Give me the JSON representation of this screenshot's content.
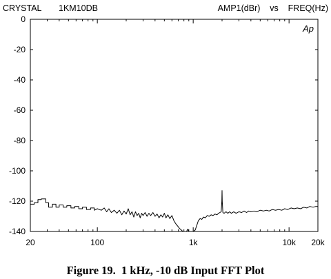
{
  "header": {
    "left_1": "CRYSTAL",
    "left_2": "1KM10DB",
    "right": "AMP1(dBr)    vs    FREQ(Hz)"
  },
  "logo": "Ap",
  "caption": "Figure 19.  1 kHz, -10 dB Input FFT Plot",
  "chart_data": {
    "type": "line",
    "title": "AMP1(dBr) vs FREQ(Hz)",
    "xlabel": "",
    "ylabel": "",
    "xscale": "log",
    "xlim": [
      20,
      20000
    ],
    "ylim": [
      -140,
      0
    ],
    "grid": false,
    "x_ticks": [
      {
        "value": 20,
        "label": "20"
      },
      {
        "value": 100,
        "label": "100"
      },
      {
        "value": 1000,
        "label": "1k"
      },
      {
        "value": 10000,
        "label": "10k"
      },
      {
        "value": 20000,
        "label": "20k"
      }
    ],
    "y_ticks": [
      {
        "value": 0,
        "label": "0"
      },
      {
        "value": -20,
        "label": "-20"
      },
      {
        "value": -40,
        "label": "-40"
      },
      {
        "value": -60,
        "label": "-60"
      },
      {
        "value": -80,
        "label": "-80"
      },
      {
        "value": -100,
        "label": "-100"
      },
      {
        "value": -120,
        "label": "-120"
      },
      {
        "value": -140,
        "label": "-140"
      }
    ],
    "series": [
      {
        "color": "#000000",
        "points": [
          [
            20,
            -122
          ],
          [
            22,
            -122
          ],
          [
            22,
            -121
          ],
          [
            24,
            -121
          ],
          [
            24,
            -119
          ],
          [
            26,
            -119
          ],
          [
            26,
            -118.5
          ],
          [
            29,
            -118.5
          ],
          [
            29,
            -121
          ],
          [
            31,
            -121
          ],
          [
            31,
            -124
          ],
          [
            34,
            -124
          ],
          [
            34,
            -122
          ],
          [
            37,
            -122
          ],
          [
            37,
            -124
          ],
          [
            40,
            -124
          ],
          [
            40,
            -122.5
          ],
          [
            44,
            -122.5
          ],
          [
            44,
            -124
          ],
          [
            48,
            -124
          ],
          [
            48,
            -123
          ],
          [
            53,
            -123
          ],
          [
            53,
            -124.5
          ],
          [
            58,
            -124.5
          ],
          [
            58,
            -123.5
          ],
          [
            64,
            -123.5
          ],
          [
            64,
            -125
          ],
          [
            70,
            -125
          ],
          [
            70,
            -124
          ],
          [
            77,
            -124
          ],
          [
            77,
            -125.5
          ],
          [
            85,
            -125.5
          ],
          [
            85,
            -124.5
          ],
          [
            93,
            -124.5
          ],
          [
            93,
            -126
          ],
          [
            100,
            -125
          ],
          [
            110,
            -126
          ],
          [
            118,
            -124.5
          ],
          [
            125,
            -127
          ],
          [
            132,
            -125
          ],
          [
            140,
            -127.5
          ],
          [
            150,
            -126
          ],
          [
            160,
            -128
          ],
          [
            170,
            -126
          ],
          [
            180,
            -129
          ],
          [
            190,
            -126.5
          ],
          [
            200,
            -128.5
          ],
          [
            210,
            -125
          ],
          [
            220,
            -129
          ],
          [
            230,
            -127
          ],
          [
            240,
            -130.5
          ],
          [
            250,
            -127
          ],
          [
            260,
            -129.5
          ],
          [
            270,
            -128
          ],
          [
            280,
            -131
          ],
          [
            290,
            -128
          ],
          [
            300,
            -129.5
          ],
          [
            315,
            -127.5
          ],
          [
            330,
            -130
          ],
          [
            345,
            -128
          ],
          [
            360,
            -129.5
          ],
          [
            380,
            -127.5
          ],
          [
            400,
            -130
          ],
          [
            420,
            -128.5
          ],
          [
            440,
            -131
          ],
          [
            460,
            -129
          ],
          [
            480,
            -130.5
          ],
          [
            500,
            -128
          ],
          [
            520,
            -131
          ],
          [
            545,
            -129
          ],
          [
            570,
            -131.5
          ],
          [
            600,
            -129.5
          ],
          [
            630,
            -133
          ],
          [
            660,
            -135
          ],
          [
            690,
            -136.5
          ],
          [
            720,
            -138
          ],
          [
            750,
            -139
          ],
          [
            780,
            -140
          ],
          [
            850,
            -140
          ],
          [
            880,
            -138.5
          ],
          [
            900,
            -140
          ],
          [
            1000,
            -140
          ],
          [
            1050,
            -139
          ],
          [
            1090,
            -136
          ],
          [
            1130,
            -133
          ],
          [
            1180,
            -131.5
          ],
          [
            1230,
            -132
          ],
          [
            1280,
            -130.5
          ],
          [
            1340,
            -131
          ],
          [
            1400,
            -129.5
          ],
          [
            1470,
            -130
          ],
          [
            1540,
            -129
          ],
          [
            1610,
            -129.5
          ],
          [
            1690,
            -128.5
          ],
          [
            1770,
            -129
          ],
          [
            1840,
            -128
          ],
          [
            1900,
            -127.5
          ],
          [
            1960,
            -127
          ],
          [
            1990,
            -120
          ],
          [
            2000,
            -113
          ],
          [
            2010,
            -120
          ],
          [
            2040,
            -127.5
          ],
          [
            2100,
            -128
          ],
          [
            2200,
            -127
          ],
          [
            2300,
            -128
          ],
          [
            2400,
            -127
          ],
          [
            2500,
            -128
          ],
          [
            2650,
            -127
          ],
          [
            2800,
            -128
          ],
          [
            3000,
            -127
          ],
          [
            3200,
            -127.5
          ],
          [
            3400,
            -126.5
          ],
          [
            3600,
            -127.5
          ],
          [
            3800,
            -126.5
          ],
          [
            4000,
            -127
          ],
          [
            4300,
            -126.5
          ],
          [
            4600,
            -127
          ],
          [
            5000,
            -126
          ],
          [
            5400,
            -126.5
          ],
          [
            5800,
            -126
          ],
          [
            6200,
            -126.5
          ],
          [
            6700,
            -125.5
          ],
          [
            7200,
            -126
          ],
          [
            7800,
            -125.5
          ],
          [
            8400,
            -126
          ],
          [
            9000,
            -125
          ],
          [
            9700,
            -125.5
          ],
          [
            10500,
            -124.5
          ],
          [
            11300,
            -125
          ],
          [
            12200,
            -124.5
          ],
          [
            13200,
            -125
          ],
          [
            14200,
            -124
          ],
          [
            15300,
            -124.5
          ],
          [
            16500,
            -123.5
          ],
          [
            17800,
            -124
          ],
          [
            19000,
            -123.5
          ],
          [
            20000,
            -123.5
          ]
        ]
      }
    ]
  }
}
